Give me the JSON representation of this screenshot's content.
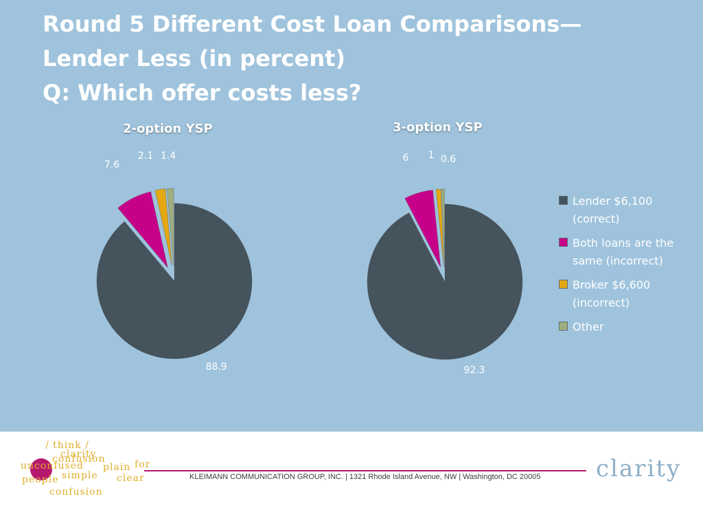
{
  "title": {
    "line1": "Round 5 Different Cost Loan Comparisons—",
    "line2": "Lender Less (in percent)",
    "line3": "Q: Which offer costs less?"
  },
  "chart_data": [
    {
      "type": "pie",
      "title": "2-option YSP",
      "categories": [
        "Lender $6,100 (correct)",
        "Both loans are the same (incorrect)",
        "Broker $6,600 (incorrect)",
        "Other"
      ],
      "values": [
        88.9,
        7.6,
        2.1,
        1.4
      ],
      "labels": [
        "88.9",
        "7.6",
        "2.1",
        "1.4"
      ],
      "colors": [
        "#45535d",
        "#c7008a",
        "#e3a812",
        "#9fae80"
      ],
      "exploded": [
        false,
        true,
        true,
        true
      ]
    },
    {
      "type": "pie",
      "title": "3-option YSP",
      "categories": [
        "Lender $6,100 (correct)",
        "Both loans are the same (incorrect)",
        "Broker $6,600 (incorrect)",
        "Other"
      ],
      "values": [
        92.3,
        6,
        1,
        0.6
      ],
      "labels": [
        "92.3",
        "6",
        "1",
        "0.6"
      ],
      "colors": [
        "#45535d",
        "#c7008a",
        "#e3a812",
        "#9fae80"
      ],
      "exploded": [
        false,
        true,
        true,
        true
      ]
    }
  ],
  "legend": {
    "position": "right",
    "items": [
      {
        "line1": "Lender $6,100",
        "line2": "(correct)",
        "color": "#45535d"
      },
      {
        "line1": "Both loans are the",
        "line2": "same (incorrect)",
        "color": "#c7008a"
      },
      {
        "line1": "Broker $6,600",
        "line2": "(incorrect)",
        "color": "#e3a812"
      },
      {
        "line1": "Other",
        "line2": "",
        "color": "#9fae80"
      }
    ]
  },
  "footer": {
    "logo_words": [
      "/ think /",
      "clarity",
      "confusion",
      "unconfused",
      "plain",
      "simple",
      "clear",
      "for",
      "people",
      "confusion"
    ],
    "address": "KLEIMANN COMMUNICATION GROUP, INC. | 1321 Rhode Island Avenue, NW | Washington, DC 20005",
    "brand": "clarity"
  }
}
